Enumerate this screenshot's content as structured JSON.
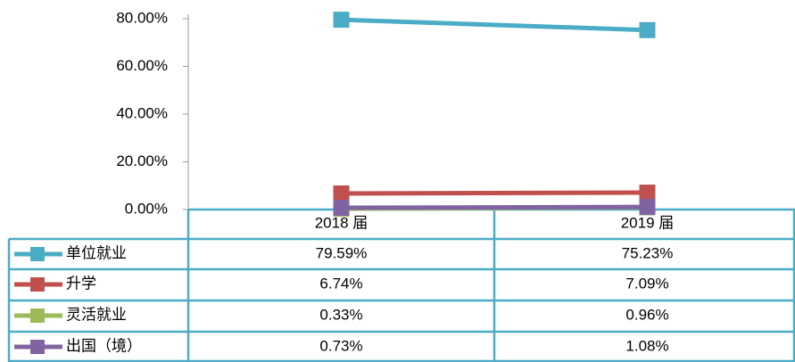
{
  "chart_data": {
    "type": "line",
    "categories": [
      "2018 届",
      "2019 届"
    ],
    "series": [
      {
        "name": "单位就业",
        "color": "#4bacc6",
        "values": [
          79.59,
          75.23
        ],
        "value_labels": [
          "79.59%",
          "75.23%"
        ]
      },
      {
        "name": "升学",
        "color": "#c0504d",
        "values": [
          6.74,
          7.09
        ],
        "value_labels": [
          "6.74%",
          "7.09%"
        ]
      },
      {
        "name": "灵活就业",
        "color": "#9bbb59",
        "values": [
          0.33,
          0.96
        ],
        "value_labels": [
          "0.33%",
          "0.96%"
        ]
      },
      {
        "name": "出国（境）",
        "color": "#8064a2",
        "values": [
          0.73,
          1.08
        ],
        "value_labels": [
          "0.73%",
          "1.08%"
        ]
      }
    ],
    "ylim": [
      0,
      80
    ],
    "yticks": [
      {
        "value": 0,
        "label": "0.00%"
      },
      {
        "value": 20,
        "label": "20.00%"
      },
      {
        "value": 40,
        "label": "40.00%"
      },
      {
        "value": 60,
        "label": "60.00%"
      },
      {
        "value": 80,
        "label": "80.00%"
      }
    ]
  }
}
